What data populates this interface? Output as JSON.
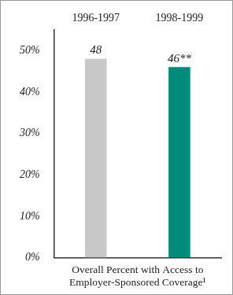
{
  "chart_data": {
    "type": "bar",
    "categories": [
      "1996-1997",
      "1998-1999"
    ],
    "values": [
      48,
      46
    ],
    "value_labels": [
      "48",
      "46**"
    ],
    "data_labels": true,
    "colors": [
      "#c8c8c8",
      "#008b7a"
    ],
    "x_label": "Overall Percent with Access to Employer-Sponsored Coverage¹",
    "ylim": [
      0,
      55
    ],
    "yticks": [
      {
        "value": 0,
        "label": "0%"
      },
      {
        "value": 10,
        "label": "10%"
      },
      {
        "value": 20,
        "label": "20%"
      },
      {
        "value": 30,
        "label": "30%"
      },
      {
        "value": 40,
        "label": "40%"
      },
      {
        "value": 50,
        "label": "50%"
      }
    ],
    "grid": false
  }
}
